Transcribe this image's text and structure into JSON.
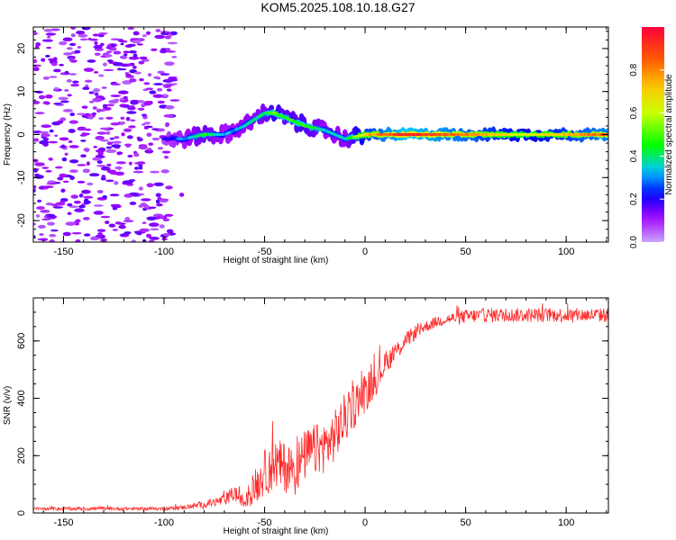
{
  "title": "KOM5.2025.108.10.18.G27",
  "colors": {
    "line": "#ff2a2a",
    "axis": "#000000",
    "spectro_low": "#c9a6ff",
    "spectro_high": "#ff0000"
  },
  "chart_data": [
    {
      "type": "heatmap",
      "xlabel": "Height of straight line (km)",
      "ylabel": "Frequency (Hz)",
      "xlim": [
        -165,
        121
      ],
      "ylim": [
        -25,
        25
      ],
      "xticks": [
        -150,
        -100,
        -50,
        0,
        50,
        100
      ],
      "yticks": [
        -20,
        -10,
        0,
        10,
        20
      ],
      "grid": false,
      "colorbar": {
        "label": "Normalized spectral amplitude",
        "range": [
          0,
          1
        ],
        "ticks": [
          0.0,
          0.2,
          0.4,
          0.6,
          0.8
        ]
      },
      "ridge": {
        "x": [
          -100,
          -90,
          -80,
          -70,
          -60,
          -50,
          -45,
          -40,
          -30,
          -20,
          -10,
          0,
          20,
          50,
          80,
          121
        ],
        "frequency": [
          -1,
          -1,
          0,
          0,
          2,
          5,
          5,
          4,
          2,
          1,
          -1,
          0,
          0,
          0,
          0,
          0
        ],
        "amplitude": [
          0.2,
          0.3,
          0.45,
          0.3,
          0.35,
          0.4,
          0.55,
          0.45,
          0.5,
          0.35,
          0.35,
          0.7,
          0.95,
          0.8,
          0.6,
          0.85
        ]
      },
      "noise_region": [
        -165,
        -95
      ],
      "noise_amplitude": 0.05
    },
    {
      "type": "line",
      "xlabel": "Height of straight line (km)",
      "ylabel": "SNR (v/v)",
      "xlim": [
        -165,
        121
      ],
      "ylim": [
        0,
        750
      ],
      "xticks": [
        -150,
        -100,
        -50,
        0,
        50,
        100
      ],
      "yticks": [
        0,
        200,
        400,
        600
      ],
      "grid": false,
      "series": [
        {
          "x": [
            -165,
            -150,
            -130,
            -110,
            -100,
            -90,
            -80,
            -70,
            -65,
            -60,
            -55,
            -50,
            -45,
            -40,
            -35,
            -30,
            -25,
            -20,
            -15,
            -10,
            -5,
            0,
            5,
            10,
            15,
            20,
            25,
            30,
            35,
            40,
            50,
            60,
            80,
            100,
            121
          ],
          "values": [
            15,
            15,
            15,
            15,
            15,
            20,
            30,
            45,
            70,
            35,
            90,
            140,
            170,
            160,
            150,
            200,
            220,
            230,
            270,
            330,
            380,
            420,
            460,
            520,
            560,
            600,
            630,
            650,
            665,
            675,
            685,
            690,
            690,
            690,
            690
          ],
          "noise": [
            5,
            6,
            6,
            6,
            6,
            8,
            12,
            20,
            30,
            20,
            60,
            80,
            90,
            90,
            90,
            90,
            90,
            90,
            90,
            90,
            80,
            70,
            55,
            40,
            35,
            30,
            25,
            20,
            20,
            20,
            25,
            25,
            25,
            25,
            25
          ]
        }
      ]
    }
  ]
}
